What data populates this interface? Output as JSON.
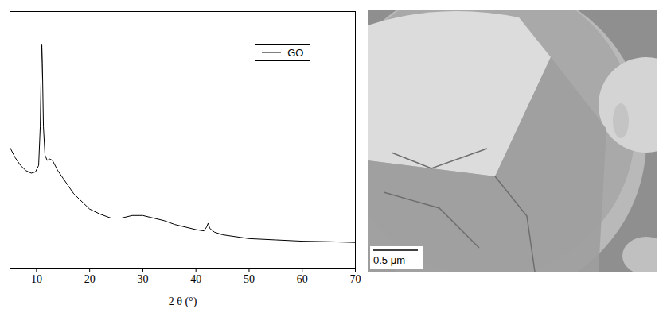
{
  "chart_data": {
    "type": "line",
    "x_label": "2 θ (°)",
    "x": [
      5,
      6,
      7,
      8,
      9,
      9.8,
      10.4,
      10.7,
      10.9,
      11.0,
      11.1,
      11.3,
      11.6,
      12,
      12.5,
      13,
      14,
      15,
      16,
      17,
      18,
      20,
      22,
      24,
      26,
      28,
      30,
      32,
      34,
      36,
      38,
      40,
      41.5,
      42,
      42.3,
      42.6,
      43.5,
      45,
      50,
      55,
      60,
      65,
      70
    ],
    "series": [
      {
        "name": "GO",
        "color": "#000000",
        "values": [
          47,
          43,
          40,
          38,
          37,
          37.5,
          40,
          55,
          80,
          87,
          80,
          55,
          44,
          42,
          42.5,
          42,
          38,
          35,
          32,
          29,
          27,
          23,
          21,
          19.5,
          19.5,
          20.5,
          20.5,
          19.5,
          18.5,
          17,
          16,
          15,
          14.5,
          16,
          17.5,
          15.5,
          14,
          13,
          11.5,
          11,
          10.5,
          10.3,
          10
        ]
      }
    ],
    "xlim": [
      5,
      70
    ],
    "xticks": [
      10,
      20,
      30,
      40,
      50,
      60,
      70
    ],
    "ylim": [
      0,
      100
    ],
    "yticks": [],
    "tick_labels": "x",
    "grid": false,
    "legend": "top-right"
  },
  "image_panel": {
    "scale_bar": "0.5 μm"
  }
}
